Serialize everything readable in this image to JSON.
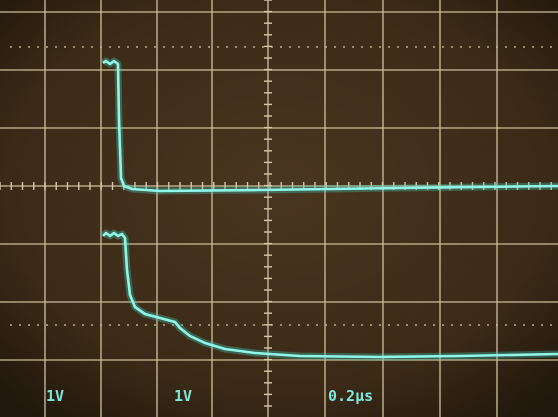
{
  "readouts": {
    "ch1": "1V",
    "ch2": "1V",
    "timebase": "0.2µs"
  }
}
